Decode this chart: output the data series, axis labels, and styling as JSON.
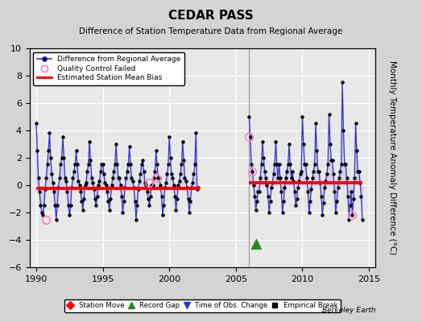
{
  "title": "CEDAR PASS",
  "subtitle": "Difference of Station Temperature Data from Regional Average",
  "ylabel": "Monthly Temperature Anomaly Difference (°C)",
  "xlabel_years": [
    1990,
    1995,
    2000,
    2005,
    2010,
    2015
  ],
  "xlim": [
    1989.5,
    2015.5
  ],
  "ylim": [
    -6,
    10
  ],
  "yticks": [
    -6,
    -4,
    -2,
    0,
    2,
    4,
    6,
    8,
    10
  ],
  "background_color": "#d4d4d4",
  "plot_bg_color": "#e8e8e8",
  "grid_color": "#ffffff",
  "line_color": "#3333cc",
  "line_fill_color": "#aaaaee",
  "dot_color": "#000000",
  "bias1_y": -0.22,
  "bias2_y": 0.18,
  "bias1_xstart": 1990.0,
  "bias1_xend": 2002.3,
  "bias2_xstart": 2006.0,
  "bias2_xend": 2014.5,
  "gap_x": 2006.5,
  "gap_y": -4.3,
  "vertical_line_x": 2006.0,
  "segment1_years": [
    1990.0,
    1990.083,
    1990.167,
    1990.25,
    1990.333,
    1990.417,
    1990.5,
    1990.583,
    1990.667,
    1990.75,
    1990.833,
    1990.917,
    1991.0,
    1991.083,
    1991.167,
    1991.25,
    1991.333,
    1991.417,
    1991.5,
    1991.583,
    1991.667,
    1991.75,
    1991.833,
    1991.917,
    1992.0,
    1992.083,
    1992.167,
    1992.25,
    1992.333,
    1992.417,
    1992.5,
    1992.583,
    1992.667,
    1992.75,
    1992.833,
    1992.917,
    1993.0,
    1993.083,
    1993.167,
    1993.25,
    1993.333,
    1993.417,
    1993.5,
    1993.583,
    1993.667,
    1993.75,
    1993.833,
    1993.917,
    1994.0,
    1994.083,
    1994.167,
    1994.25,
    1994.333,
    1994.417,
    1994.5,
    1994.583,
    1994.667,
    1994.75,
    1994.833,
    1994.917,
    1995.0,
    1995.083,
    1995.167,
    1995.25,
    1995.333,
    1995.417,
    1995.5,
    1995.583,
    1995.667,
    1995.75,
    1995.833,
    1995.917,
    1996.0,
    1996.083,
    1996.167,
    1996.25,
    1996.333,
    1996.417,
    1996.5,
    1996.583,
    1996.667,
    1996.75,
    1996.833,
    1996.917,
    1997.0,
    1997.083,
    1997.167,
    1997.25,
    1997.333,
    1997.417,
    1997.5,
    1997.583,
    1997.667,
    1997.75,
    1997.833,
    1997.917,
    1998.0,
    1998.083,
    1998.167,
    1998.25,
    1998.333,
    1998.417,
    1998.5,
    1998.583,
    1998.667,
    1998.75,
    1998.833,
    1998.917,
    1999.0,
    1999.083,
    1999.167,
    1999.25,
    1999.333,
    1999.417,
    1999.5,
    1999.583,
    1999.667,
    1999.75,
    1999.833,
    1999.917,
    2000.0,
    2000.083,
    2000.167,
    2000.25,
    2000.333,
    2000.417,
    2000.5,
    2000.583,
    2000.667,
    2000.75,
    2000.833,
    2000.917,
    2001.0,
    2001.083,
    2001.167,
    2001.25,
    2001.333,
    2001.417,
    2001.5,
    2001.583,
    2001.667,
    2001.75,
    2001.833,
    2001.917,
    2002.0,
    2002.083,
    2002.167
  ],
  "segment1_values": [
    4.5,
    2.5,
    0.5,
    -0.5,
    -1.5,
    -2.0,
    -2.2,
    -1.5,
    -0.3,
    0.5,
    1.5,
    2.5,
    3.8,
    2.0,
    0.8,
    0.2,
    -0.5,
    -1.5,
    -2.5,
    -1.5,
    -0.2,
    0.5,
    1.5,
    2.0,
    3.5,
    2.0,
    0.5,
    0.3,
    -0.5,
    -1.5,
    -2.2,
    -1.5,
    -0.2,
    0.5,
    1.0,
    1.5,
    2.5,
    1.5,
    0.3,
    0.0,
    -0.5,
    -1.2,
    -1.8,
    -1.0,
    0.0,
    0.2,
    1.0,
    1.5,
    3.2,
    1.8,
    0.5,
    0.2,
    -0.3,
    -1.0,
    -1.5,
    -0.8,
    0.0,
    0.3,
    1.0,
    1.5,
    1.5,
    0.8,
    0.2,
    0.0,
    -0.5,
    -1.2,
    -1.8,
    -1.0,
    0.0,
    0.5,
    1.0,
    1.5,
    3.0,
    1.5,
    0.5,
    0.5,
    0.0,
    -0.8,
    -2.0,
    -1.2,
    -0.2,
    0.5,
    1.0,
    1.5,
    2.8,
    1.5,
    0.5,
    0.3,
    -0.2,
    -1.2,
    -2.5,
    -1.5,
    -0.3,
    0.3,
    0.8,
    1.5,
    1.8,
    1.0,
    0.2,
    0.0,
    -0.5,
    -1.0,
    -1.5,
    -0.8,
    0.0,
    0.0,
    0.5,
    1.0,
    2.5,
    1.5,
    0.5,
    0.5,
    0.0,
    -0.8,
    -2.2,
    -1.5,
    -0.2,
    0.2,
    0.8,
    1.5,
    3.5,
    2.0,
    0.8,
    0.5,
    0.0,
    -0.8,
    -1.8,
    -1.0,
    0.0,
    0.3,
    0.8,
    1.5,
    3.2,
    1.8,
    0.5,
    0.3,
    -0.2,
    -1.0,
    -2.0,
    -1.2,
    -0.2,
    0.2,
    0.8,
    1.5,
    3.8,
    -0.3,
    -0.2
  ],
  "segment2_years": [
    2006.0,
    2006.083,
    2006.167,
    2006.25,
    2006.333,
    2006.417,
    2006.5,
    2006.583,
    2006.667,
    2006.75,
    2006.833,
    2006.917,
    2007.0,
    2007.083,
    2007.167,
    2007.25,
    2007.333,
    2007.417,
    2007.5,
    2007.583,
    2007.667,
    2007.75,
    2007.833,
    2007.917,
    2008.0,
    2008.083,
    2008.167,
    2008.25,
    2008.333,
    2008.417,
    2008.5,
    2008.583,
    2008.667,
    2008.75,
    2008.833,
    2008.917,
    2009.0,
    2009.083,
    2009.167,
    2009.25,
    2009.333,
    2009.417,
    2009.5,
    2009.583,
    2009.667,
    2009.75,
    2009.833,
    2009.917,
    2010.0,
    2010.083,
    2010.167,
    2010.25,
    2010.333,
    2010.417,
    2010.5,
    2010.583,
    2010.667,
    2010.75,
    2010.833,
    2010.917,
    2011.0,
    2011.083,
    2011.167,
    2011.25,
    2011.333,
    2011.417,
    2011.5,
    2011.583,
    2011.667,
    2011.75,
    2011.833,
    2011.917,
    2012.0,
    2012.083,
    2012.167,
    2012.25,
    2012.333,
    2012.417,
    2012.5,
    2012.583,
    2012.667,
    2012.75,
    2012.833,
    2012.917,
    2013.0,
    2013.083,
    2013.167,
    2013.25,
    2013.333,
    2013.417,
    2013.5,
    2013.583,
    2013.667,
    2013.75,
    2013.833,
    2013.917,
    2014.0,
    2014.083,
    2014.167,
    2014.25,
    2014.333,
    2014.417,
    2014.5
  ],
  "segment2_values": [
    5.0,
    3.5,
    1.5,
    1.0,
    0.0,
    -0.8,
    -1.8,
    -1.2,
    -0.5,
    -0.5,
    0.5,
    1.5,
    3.2,
    2.0,
    1.0,
    0.5,
    0.0,
    -0.8,
    -2.0,
    -1.2,
    -0.2,
    0.2,
    0.8,
    1.5,
    3.2,
    1.5,
    0.5,
    1.5,
    0.5,
    -0.5,
    -2.0,
    -1.2,
    -0.2,
    0.5,
    1.0,
    1.5,
    3.0,
    1.5,
    0.5,
    1.0,
    0.3,
    -0.5,
    -1.5,
    -1.0,
    -0.2,
    0.3,
    0.8,
    1.0,
    5.0,
    3.0,
    1.5,
    1.5,
    0.5,
    -0.5,
    -2.0,
    -1.2,
    -0.3,
    0.5,
    1.0,
    1.5,
    4.5,
    2.5,
    1.0,
    1.0,
    0.2,
    -0.8,
    -2.2,
    -1.3,
    -0.2,
    0.3,
    0.8,
    1.5,
    5.2,
    3.0,
    1.8,
    1.8,
    0.8,
    -0.5,
    -2.0,
    -1.2,
    -0.2,
    0.5,
    1.0,
    1.5,
    7.5,
    4.0,
    1.5,
    1.5,
    0.5,
    -0.8,
    -2.5,
    -1.5,
    -0.5,
    -2.2,
    -1.0,
    0.5,
    4.5,
    2.5,
    1.0,
    1.0,
    0.2,
    -0.8,
    -2.5
  ],
  "qc_failed": [
    [
      1990.75,
      -2.5
    ],
    [
      1998.5,
      0.2
    ],
    [
      1999.0,
      0.5
    ],
    [
      2006.0,
      3.5
    ],
    [
      2006.25,
      1.0
    ],
    [
      2013.75,
      -2.2
    ]
  ],
  "berkeley_earth_text": "Berkeley Earth"
}
